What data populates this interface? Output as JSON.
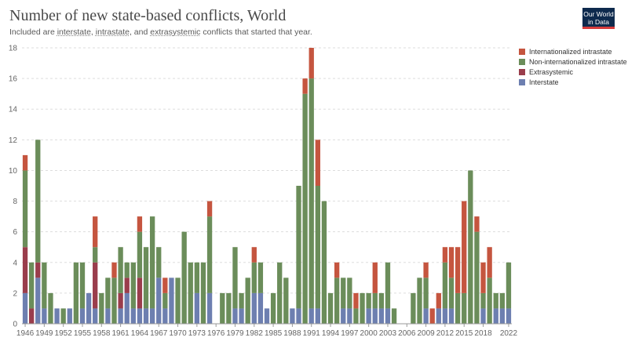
{
  "header": {
    "title": "Number of new state-based conflicts, World",
    "subtitle_prefix": "Included are ",
    "subtitle_term1": "interstate",
    "subtitle_sep1": ", ",
    "subtitle_term2": "intrastate",
    "subtitle_sep2": ", and ",
    "subtitle_term3": "extrasystemic",
    "subtitle_suffix": " conflicts that started that year."
  },
  "logo": {
    "line1": "Our World",
    "line2": "in Data"
  },
  "colors": {
    "Internationalized intrastate": "#c5553f",
    "Non-internationalized intrastate": "#6b8d5a",
    "Extrasystemic": "#9a3d4c",
    "Interstate": "#6d7fb0"
  },
  "chart_data": {
    "type": "bar",
    "stacked": true,
    "title": "Number of new state-based conflicts, World",
    "ylim": [
      0,
      18
    ],
    "y_ticks": [
      0,
      2,
      4,
      6,
      8,
      10,
      12,
      14,
      16,
      18
    ],
    "x_tick_labels": [
      1946,
      1949,
      1952,
      1955,
      1958,
      1961,
      1964,
      1967,
      1970,
      1973,
      1976,
      1979,
      1982,
      1985,
      1988,
      1991,
      1994,
      1997,
      2000,
      2003,
      2006,
      2009,
      2012,
      2015,
      2018,
      2022
    ],
    "grid": true,
    "legend_position": "top-right",
    "categories": [
      1946,
      1947,
      1948,
      1949,
      1950,
      1951,
      1952,
      1953,
      1954,
      1955,
      1956,
      1957,
      1958,
      1959,
      1960,
      1961,
      1962,
      1963,
      1964,
      1965,
      1966,
      1967,
      1968,
      1969,
      1970,
      1971,
      1972,
      1973,
      1974,
      1975,
      1976,
      1977,
      1978,
      1979,
      1980,
      1981,
      1982,
      1983,
      1984,
      1985,
      1986,
      1987,
      1988,
      1989,
      1990,
      1991,
      1992,
      1993,
      1994,
      1995,
      1996,
      1997,
      1998,
      1999,
      2000,
      2001,
      2002,
      2003,
      2004,
      2005,
      2006,
      2007,
      2008,
      2009,
      2010,
      2011,
      2012,
      2013,
      2014,
      2015,
      2016,
      2017,
      2018,
      2019,
      2020,
      2021,
      2022
    ],
    "series": [
      {
        "name": "Interstate",
        "values": [
          2,
          0,
          3,
          1,
          0,
          1,
          0,
          1,
          0,
          1,
          2,
          1,
          0,
          1,
          0,
          1,
          2,
          1,
          1,
          1,
          1,
          3,
          1,
          3,
          0,
          0,
          0,
          2,
          0,
          2,
          0,
          0,
          0,
          1,
          1,
          0,
          2,
          2,
          1,
          0,
          0,
          0,
          1,
          1,
          0,
          1,
          1,
          0,
          0,
          0,
          1,
          1,
          0,
          0,
          1,
          1,
          1,
          1,
          0,
          0,
          0,
          0,
          0,
          1,
          0,
          1,
          1,
          1,
          0,
          0,
          0,
          0,
          1,
          0,
          1,
          1,
          1
        ]
      },
      {
        "name": "Extrasystemic",
        "values": [
          3,
          1,
          1,
          0,
          0,
          0,
          0,
          0,
          0,
          0,
          0,
          3,
          0,
          0,
          0,
          1,
          1,
          0,
          2,
          0,
          0,
          0,
          0,
          0,
          0,
          0,
          0,
          0,
          0,
          0,
          0,
          0,
          0,
          0,
          0,
          0,
          0,
          0,
          0,
          0,
          0,
          0,
          0,
          0,
          0,
          0,
          0,
          0,
          0,
          0,
          0,
          0,
          0,
          0,
          0,
          0,
          0,
          0,
          0,
          0,
          0,
          0,
          0,
          0,
          0,
          0,
          0,
          0,
          0,
          0,
          0,
          0,
          0,
          0,
          0,
          0,
          0
        ]
      },
      {
        "name": "Non-internationalized intrastate",
        "values": [
          5,
          3,
          8,
          3,
          2,
          0,
          1,
          0,
          4,
          3,
          0,
          1,
          2,
          2,
          3,
          3,
          1,
          3,
          3,
          4,
          6,
          2,
          1,
          0,
          3,
          6,
          4,
          2,
          4,
          5,
          0,
          2,
          2,
          4,
          1,
          3,
          2,
          2,
          0,
          2,
          4,
          3,
          0,
          8,
          15,
          15,
          8,
          8,
          2,
          3,
          2,
          2,
          1,
          2,
          1,
          1,
          1,
          3,
          1,
          0,
          0,
          2,
          3,
          2,
          0,
          0,
          3,
          2,
          2,
          2,
          10,
          6,
          1,
          3,
          1,
          1,
          3
        ]
      },
      {
        "name": "Internationalized intrastate",
        "values": [
          1,
          0,
          0,
          0,
          0,
          0,
          0,
          0,
          0,
          0,
          0,
          2,
          0,
          0,
          1,
          0,
          0,
          0,
          1,
          0,
          0,
          0,
          1,
          0,
          0,
          0,
          0,
          0,
          0,
          1,
          0,
          0,
          0,
          0,
          0,
          0,
          1,
          0,
          0,
          0,
          0,
          0,
          0,
          0,
          1,
          2,
          3,
          0,
          0,
          1,
          0,
          0,
          1,
          0,
          0,
          2,
          0,
          0,
          0,
          0,
          0,
          0,
          0,
          1,
          1,
          1,
          1,
          2,
          3,
          6,
          0,
          1,
          2,
          2,
          0,
          0,
          0
        ]
      }
    ]
  }
}
